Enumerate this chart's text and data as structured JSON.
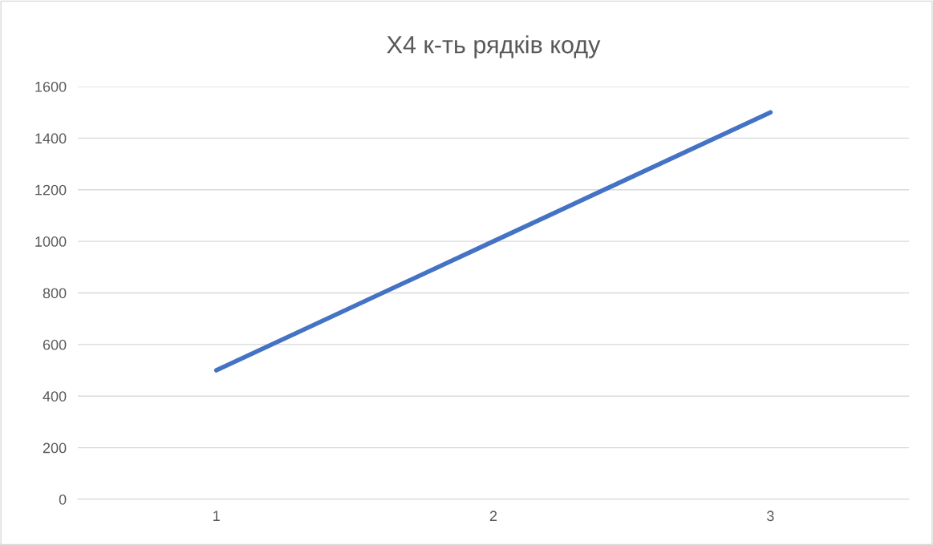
{
  "chart_data": {
    "type": "line",
    "title": "X4 к-ть рядків коду",
    "categories": [
      "1",
      "2",
      "3"
    ],
    "series": [
      {
        "color": "#4472c4",
        "values": [
          500,
          1000,
          1500
        ]
      }
    ],
    "ylim": [
      0,
      1600
    ],
    "yticks": [
      0,
      200,
      400,
      600,
      800,
      1000,
      1200,
      1400,
      1600
    ],
    "grid": "y",
    "marker": "none",
    "line_style": "solid"
  }
}
